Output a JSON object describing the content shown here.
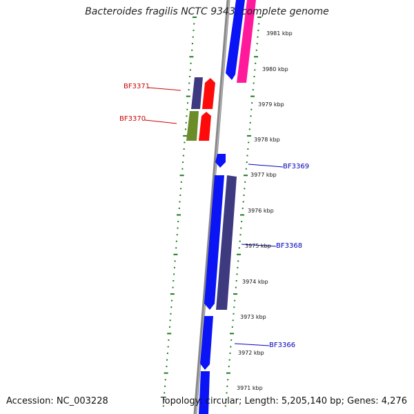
{
  "title": "Bacteroides fragilis NCTC 9343, complete genome",
  "footer": {
    "accession": "Accession: NC_003228",
    "summary": "Topology: circular; Length: 5,205,140 bp; Genes: 4,276"
  },
  "ticks": [
    "3981 kbp",
    "3980 kbp",
    "3979 kbp",
    "3978 kbp",
    "3977 kbp",
    "3976 kbp",
    "3975 kbp",
    "3974 kbp",
    "3973 kbp",
    "3972 kbp",
    "3971 kbp"
  ],
  "gene_labels": {
    "BF3371": "BF3371",
    "BF3370": "BF3370",
    "BF3369": "BF3369",
    "BF3368": "BF3368",
    "BF3366": "BF3366"
  },
  "colors": {
    "blue_gene": "#0a14f5",
    "navy_gene": "#3e3a80",
    "red_gene": "#ff0a0a",
    "magenta_gene": "#ff1a9c",
    "olive_gene": "#6b8c28",
    "backbone": "#888888",
    "ruler": "#1a7a1a",
    "label_red": "#cc0000",
    "label_blue": "#0000bb"
  }
}
